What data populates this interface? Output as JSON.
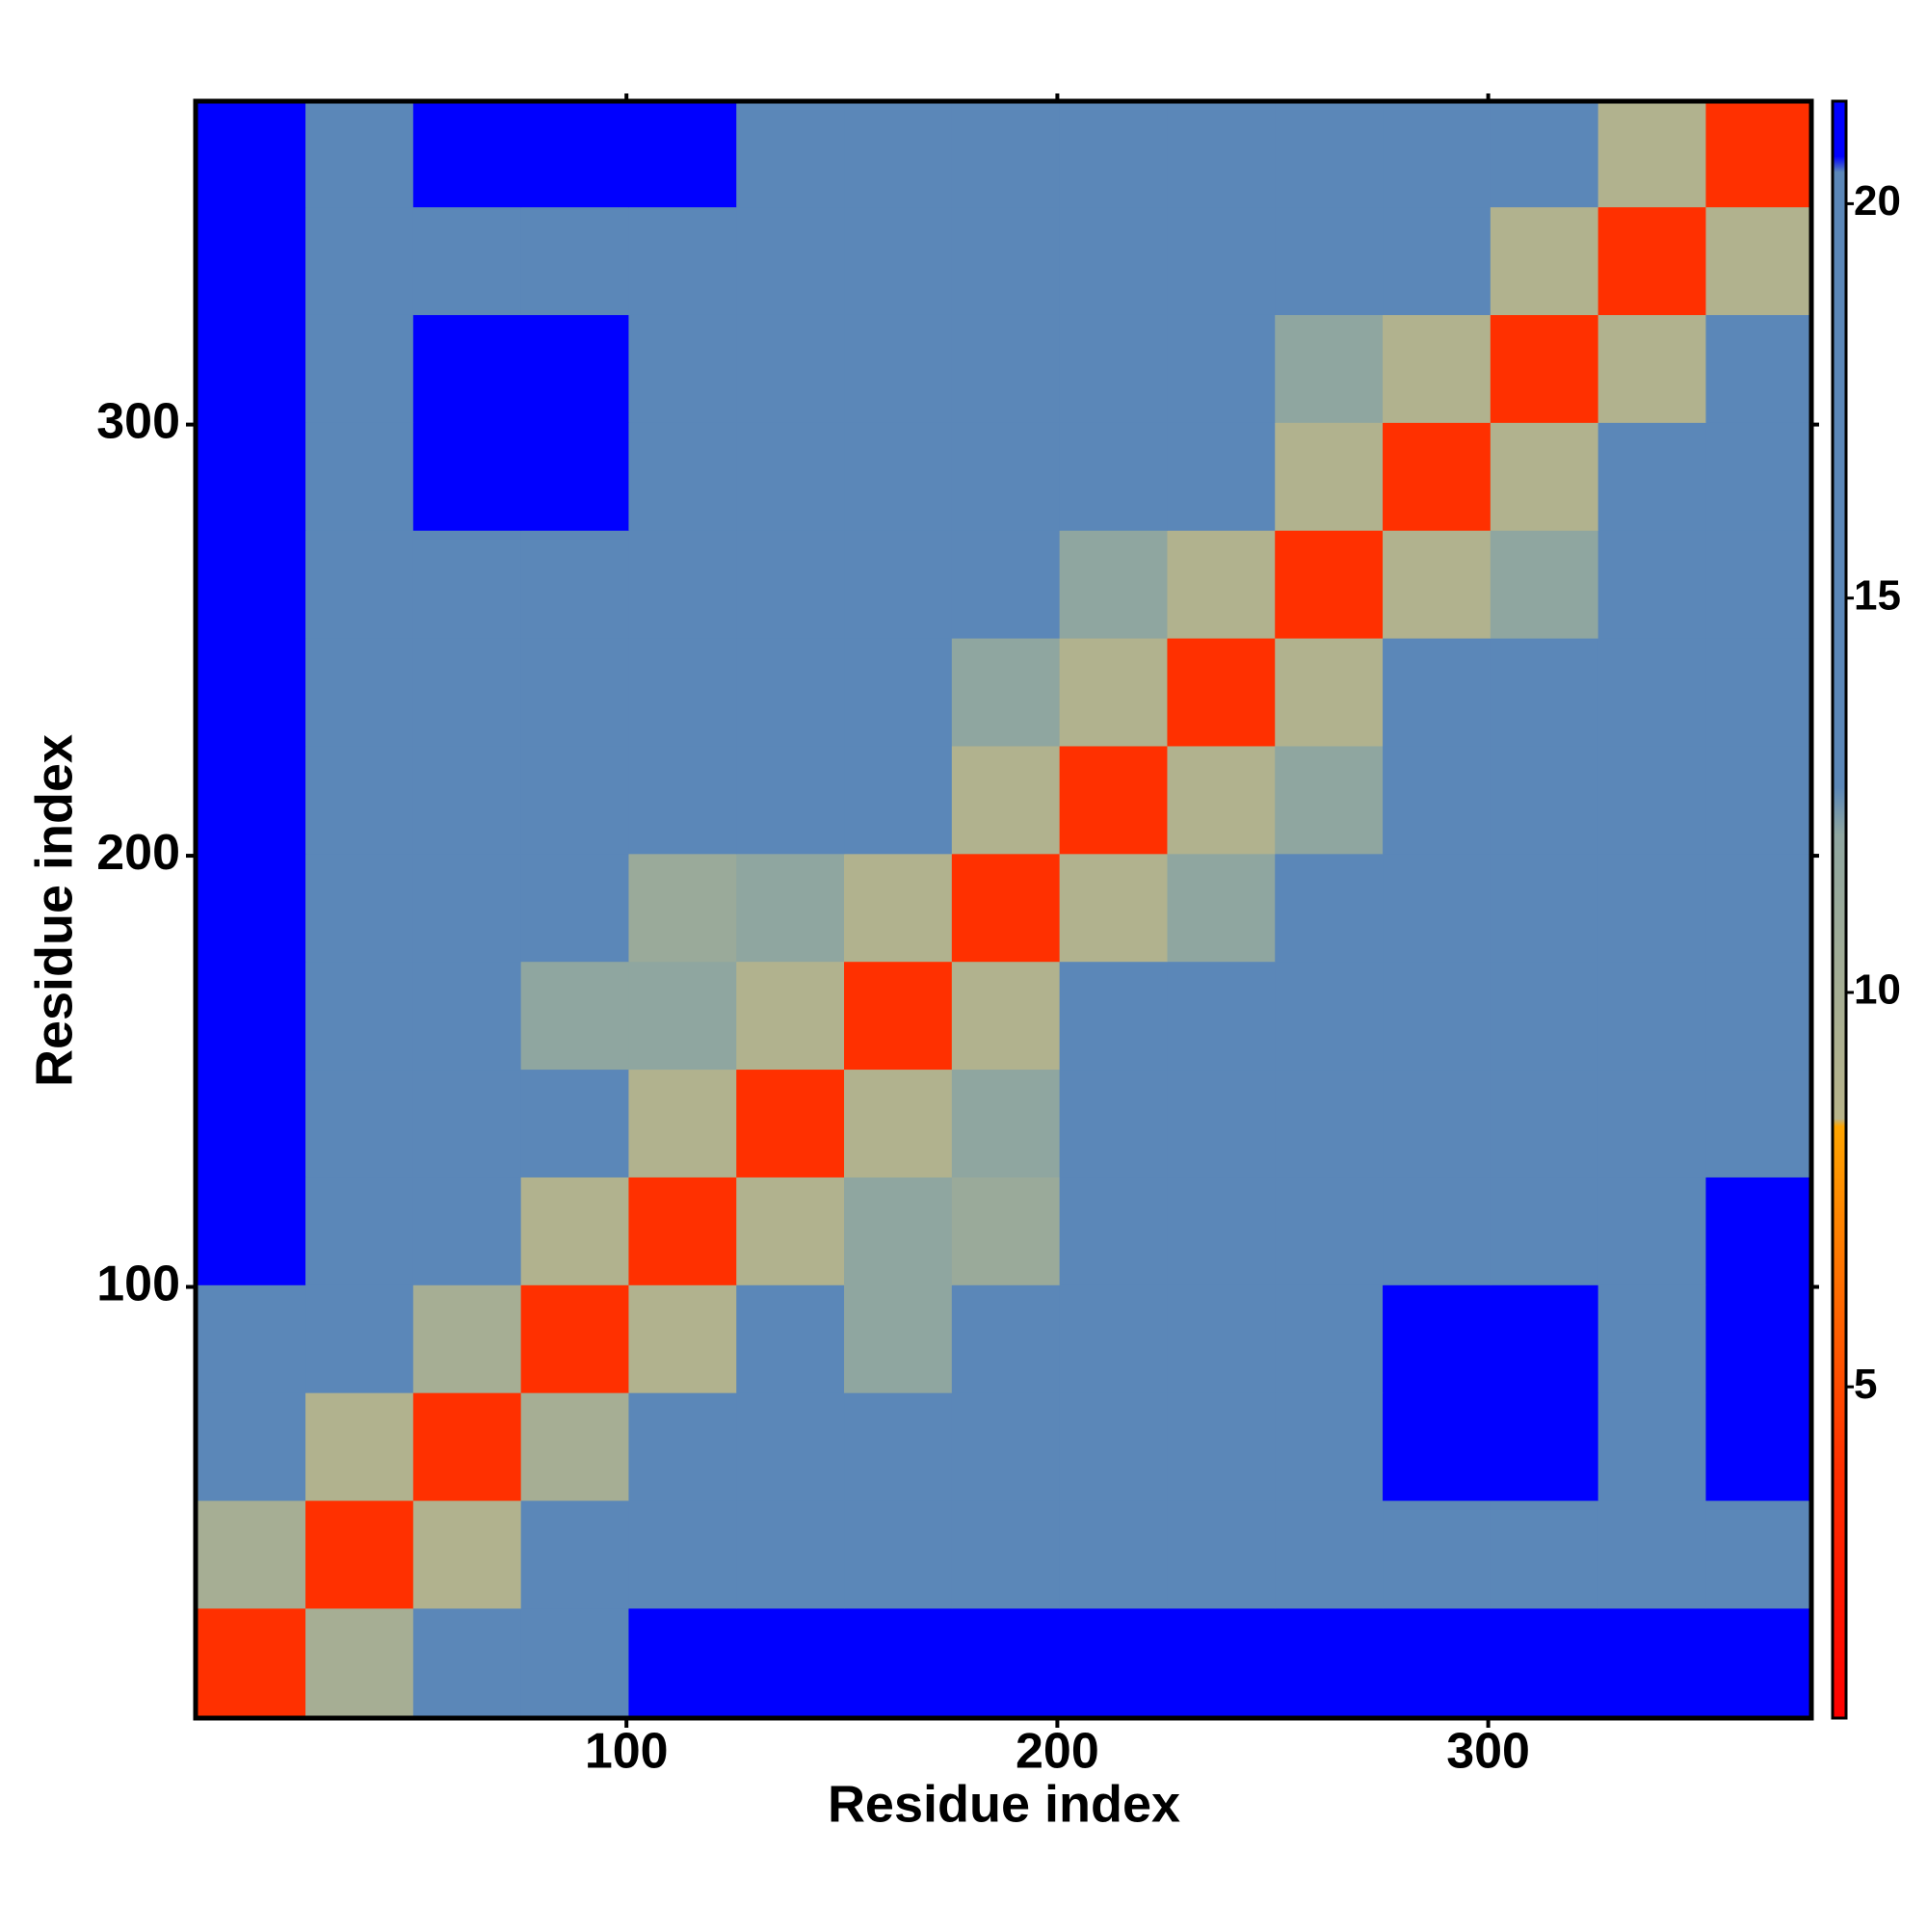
{
  "chart_data": {
    "type": "heatmap",
    "xlabel": "Residue index",
    "ylabel": "Residue index",
    "x": [
      13,
      38,
      63,
      88,
      113,
      138,
      163,
      188,
      213,
      238,
      263,
      288,
      313,
      338,
      363
    ],
    "y": [
      13,
      38,
      63,
      88,
      113,
      138,
      163,
      188,
      213,
      238,
      263,
      288,
      313,
      338,
      363
    ],
    "z": [
      [
        4,
        10,
        17,
        20,
        22,
        22,
        22,
        22,
        22,
        22,
        22,
        22,
        22,
        22,
        22
      ],
      [
        10,
        4,
        9,
        14,
        16,
        17,
        18,
        14,
        16,
        14,
        17,
        18,
        20,
        19,
        20
      ],
      [
        17,
        9,
        4,
        10,
        14,
        13,
        16,
        17,
        18,
        19,
        20,
        21,
        21,
        20,
        21
      ],
      [
        20,
        14,
        10,
        4,
        9,
        14,
        12,
        13,
        17,
        19,
        20,
        21,
        21,
        20,
        21
      ],
      [
        22,
        16,
        14,
        9,
        4,
        9,
        12,
        11,
        16,
        17,
        18,
        20,
        20,
        19,
        21
      ],
      [
        22,
        17,
        13,
        14,
        9,
        4,
        9,
        12,
        15,
        16,
        17,
        18,
        19,
        20,
        20
      ],
      [
        22,
        18,
        16,
        12,
        12,
        9,
        4,
        9,
        13,
        16,
        17,
        18,
        17,
        19,
        18
      ],
      [
        22,
        14,
        17,
        13,
        11,
        12,
        9,
        4,
        9,
        12,
        14,
        16,
        17,
        18,
        17
      ],
      [
        22,
        16,
        18,
        17,
        16,
        15,
        13,
        9,
        4,
        9,
        12,
        14,
        15,
        16,
        17
      ],
      [
        22,
        14,
        19,
        19,
        17,
        16,
        16,
        12,
        9,
        4,
        9,
        13,
        13,
        16,
        18
      ],
      [
        22,
        17,
        20,
        20,
        18,
        17,
        17,
        14,
        12,
        9,
        4,
        9,
        12,
        13,
        17
      ],
      [
        22,
        18,
        21,
        21,
        20,
        18,
        18,
        16,
        14,
        13,
        9,
        4,
        9,
        13,
        14
      ],
      [
        22,
        20,
        21,
        21,
        20,
        19,
        17,
        17,
        15,
        13,
        12,
        9,
        4,
        9,
        13
      ],
      [
        22,
        19,
        20,
        20,
        19,
        20,
        19,
        18,
        16,
        16,
        13,
        13,
        9,
        4,
        9
      ],
      [
        22,
        20,
        21,
        21,
        21,
        20,
        18,
        17,
        17,
        18,
        17,
        14,
        13,
        9,
        4
      ]
    ],
    "xlim": [
      0,
      375
    ],
    "ylim": [
      0,
      375
    ],
    "xticks": [
      100,
      200,
      300
    ],
    "yticks": [
      100,
      200,
      300
    ],
    "clim": [
      0.8,
      21.3
    ],
    "cticks": [
      5,
      10,
      15,
      20
    ],
    "colorscale": [
      [
        0.8,
        "#ff0000"
      ],
      [
        4,
        "#ff3000"
      ],
      [
        8.3,
        "#ffa500"
      ],
      [
        8.4,
        "#b8b48a"
      ],
      [
        12,
        "#8fa6a0"
      ],
      [
        12.6,
        "#5b87b8"
      ],
      [
        20.4,
        "#5b87b8"
      ],
      [
        20.6,
        "#0000ff"
      ],
      [
        21.3,
        "#0000ff"
      ]
    ]
  }
}
